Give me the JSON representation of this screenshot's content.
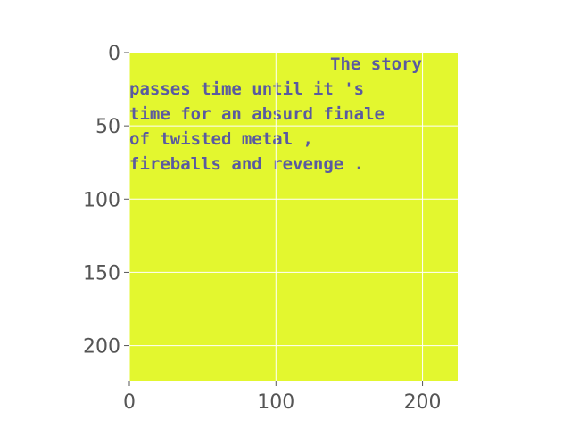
{
  "chart_data": {
    "type": "image",
    "background_color": "#e3f72f",
    "text_color": "#5a5aa0",
    "highlight_color": "#e8202a",
    "image_text_lines": [
      "The story",
      "passes time until it 's",
      "time for an absurd finale",
      "of twisted metal ,",
      "fireballs and revenge ."
    ],
    "xlim": [
      0,
      224
    ],
    "ylim": [
      224,
      0
    ],
    "xticks": [
      0,
      100,
      200
    ],
    "yticks": [
      0,
      50,
      100,
      150,
      200
    ],
    "grid": true,
    "grid_color": "#ffffff"
  }
}
